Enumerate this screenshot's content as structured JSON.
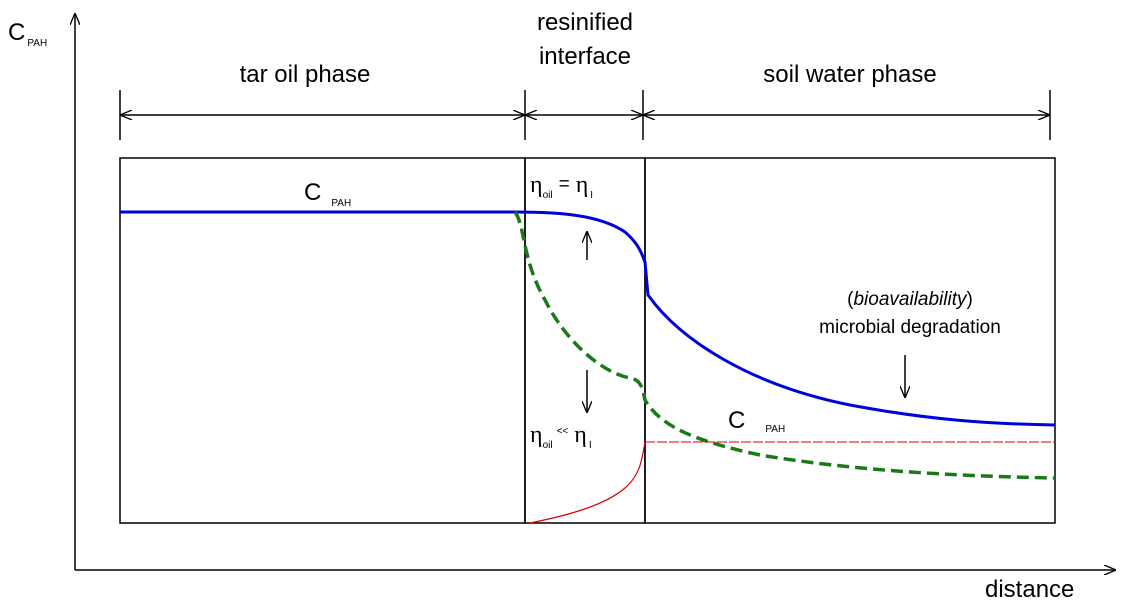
{
  "axes": {
    "y_label": {
      "main": "C",
      "sub": "PAH"
    },
    "x_label": "distance"
  },
  "regions": {
    "tar": "tar oil phase",
    "interface": [
      "resinified",
      "interface"
    ],
    "water": "soil water phase"
  },
  "labels": {
    "tar_conc": {
      "main": "C",
      "sub": "PAH"
    },
    "high": {
      "s1": "η",
      "sub1": "oil",
      "op": "=",
      "s2": "η",
      "sub2": "I"
    },
    "low": {
      "s1": "η",
      "sub1": "oil",
      "op": "<<",
      "s2": "η",
      "sub2": "I"
    },
    "bio": {
      "open": "(",
      "word": "bioavailability",
      "close": ")",
      "line2": "microbial degradation"
    },
    "water_conc": {
      "main": "C",
      "sub": "PAH"
    }
  }
}
